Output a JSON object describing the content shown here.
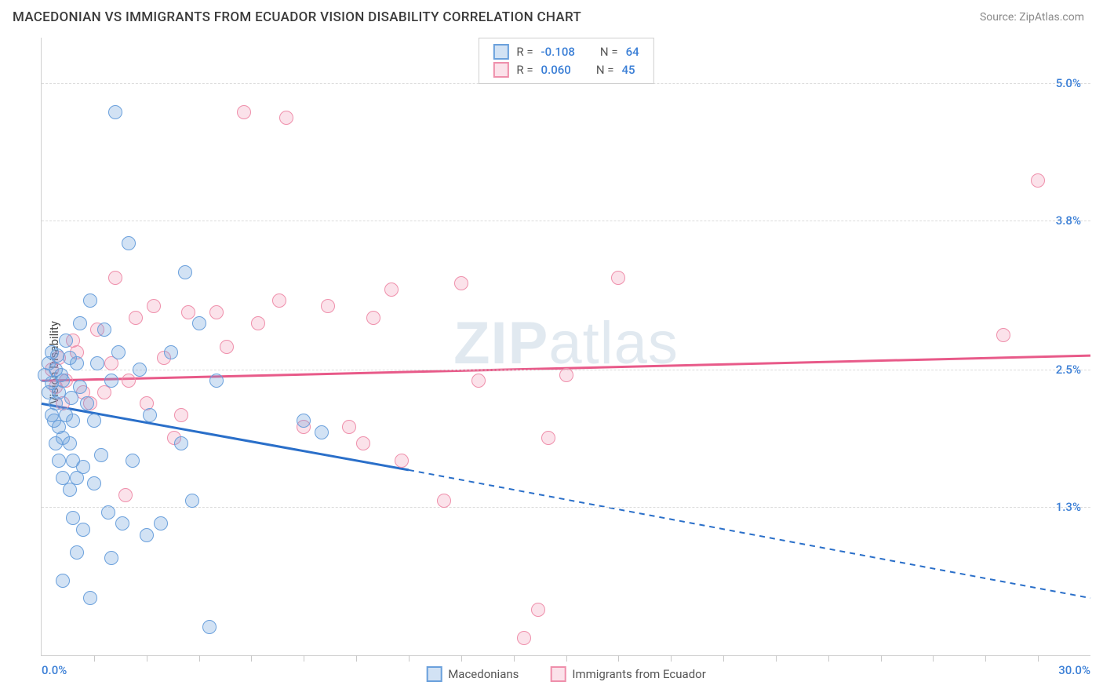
{
  "header": {
    "title": "MACEDONIAN VS IMMIGRANTS FROM ECUADOR VISION DISABILITY CORRELATION CHART",
    "source": "Source: ZipAtlas.com"
  },
  "chart": {
    "type": "scatter",
    "ylabel": "Vision Disability",
    "watermark": {
      "bold": "ZIP",
      "rest": "atlas"
    },
    "xlim": [
      0,
      30
    ],
    "ylim": [
      0,
      5.4
    ],
    "xticks": {
      "min": "0.0%",
      "max": "30.0%",
      "minor_step": 1.5
    },
    "yticks": [
      {
        "v": 1.3,
        "label": "1.3%"
      },
      {
        "v": 2.5,
        "label": "2.5%"
      },
      {
        "v": 3.8,
        "label": "3.8%"
      },
      {
        "v": 5.0,
        "label": "5.0%"
      }
    ],
    "background_color": "#ffffff",
    "grid_color": "#dcdcdc",
    "series": {
      "a": {
        "name": "Macedonians",
        "fill": "rgba(105,160,220,0.30)",
        "stroke": "#6aa0dc",
        "line_color": "#2a6fc9",
        "R": "-0.108",
        "N": "64",
        "trend": {
          "x1": 0,
          "y1": 2.2,
          "x2_solid": 10.5,
          "y2_solid": 1.62,
          "x2": 30,
          "y2": 0.5
        },
        "points": [
          [
            0.1,
            2.45
          ],
          [
            0.2,
            2.3
          ],
          [
            0.2,
            2.55
          ],
          [
            0.3,
            2.1
          ],
          [
            0.3,
            2.38
          ],
          [
            0.3,
            2.65
          ],
          [
            0.35,
            2.05
          ],
          [
            0.4,
            1.85
          ],
          [
            0.4,
            2.2
          ],
          [
            0.4,
            2.5
          ],
          [
            0.45,
            2.62
          ],
          [
            0.5,
            1.7
          ],
          [
            0.5,
            2.0
          ],
          [
            0.5,
            2.3
          ],
          [
            0.55,
            2.45
          ],
          [
            0.6,
            0.65
          ],
          [
            0.6,
            1.55
          ],
          [
            0.6,
            1.9
          ],
          [
            0.6,
            2.4
          ],
          [
            0.7,
            2.1
          ],
          [
            0.7,
            2.75
          ],
          [
            0.8,
            1.45
          ],
          [
            0.8,
            1.85
          ],
          [
            0.8,
            2.6
          ],
          [
            0.85,
            2.25
          ],
          [
            0.9,
            1.2
          ],
          [
            0.9,
            1.7
          ],
          [
            0.9,
            2.05
          ],
          [
            1.0,
            0.9
          ],
          [
            1.0,
            1.55
          ],
          [
            1.0,
            2.55
          ],
          [
            1.1,
            2.35
          ],
          [
            1.1,
            2.9
          ],
          [
            1.2,
            1.1
          ],
          [
            1.2,
            1.65
          ],
          [
            1.3,
            2.2
          ],
          [
            1.4,
            0.5
          ],
          [
            1.4,
            3.1
          ],
          [
            1.5,
            1.5
          ],
          [
            1.5,
            2.05
          ],
          [
            1.6,
            2.55
          ],
          [
            1.7,
            1.75
          ],
          [
            1.8,
            2.85
          ],
          [
            1.9,
            1.25
          ],
          [
            2.0,
            0.85
          ],
          [
            2.0,
            2.4
          ],
          [
            2.1,
            4.75
          ],
          [
            2.3,
            1.15
          ],
          [
            2.5,
            3.6
          ],
          [
            2.6,
            1.7
          ],
          [
            2.8,
            2.5
          ],
          [
            3.0,
            1.05
          ],
          [
            3.1,
            2.1
          ],
          [
            3.4,
            1.15
          ],
          [
            3.7,
            2.65
          ],
          [
            4.0,
            1.85
          ],
          [
            4.1,
            3.35
          ],
          [
            4.3,
            1.35
          ],
          [
            4.5,
            2.9
          ],
          [
            4.8,
            0.25
          ],
          [
            5.0,
            2.4
          ],
          [
            7.5,
            2.05
          ],
          [
            8.0,
            1.95
          ],
          [
            2.2,
            2.65
          ]
        ]
      },
      "b": {
        "name": "Immigrants from Ecuador",
        "fill": "rgba(240,140,170,0.25)",
        "stroke": "#ef8fab",
        "line_color": "#e85a89",
        "R": "0.060",
        "N": "45",
        "trend": {
          "x1": 0,
          "y1": 2.4,
          "x2": 30,
          "y2": 2.62
        },
        "points": [
          [
            0.3,
            2.5
          ],
          [
            0.4,
            2.35
          ],
          [
            0.5,
            2.6
          ],
          [
            0.7,
            2.4
          ],
          [
            0.9,
            2.75
          ],
          [
            1.2,
            2.3
          ],
          [
            1.4,
            2.2
          ],
          [
            1.6,
            2.85
          ],
          [
            1.8,
            2.3
          ],
          [
            2.0,
            2.55
          ],
          [
            2.1,
            3.3
          ],
          [
            2.4,
            1.4
          ],
          [
            2.5,
            2.4
          ],
          [
            2.7,
            2.95
          ],
          [
            3.0,
            2.2
          ],
          [
            3.2,
            3.05
          ],
          [
            3.5,
            2.6
          ],
          [
            3.8,
            1.9
          ],
          [
            4.0,
            2.1
          ],
          [
            4.2,
            3.0
          ],
          [
            5.0,
            3.0
          ],
          [
            5.3,
            2.7
          ],
          [
            5.8,
            4.75
          ],
          [
            6.2,
            2.9
          ],
          [
            6.8,
            3.1
          ],
          [
            7.0,
            4.7
          ],
          [
            7.5,
            2.0
          ],
          [
            8.2,
            3.05
          ],
          [
            8.8,
            2.0
          ],
          [
            9.2,
            1.85
          ],
          [
            9.5,
            2.95
          ],
          [
            10.0,
            3.2
          ],
          [
            10.3,
            1.7
          ],
          [
            11.5,
            1.35
          ],
          [
            12.0,
            3.25
          ],
          [
            12.5,
            2.4
          ],
          [
            13.8,
            0.15
          ],
          [
            14.5,
            1.9
          ],
          [
            15.0,
            2.45
          ],
          [
            14.2,
            0.4
          ],
          [
            16.5,
            3.3
          ],
          [
            27.5,
            2.8
          ],
          [
            28.5,
            4.15
          ],
          [
            0.6,
            2.2
          ],
          [
            1.0,
            2.65
          ]
        ]
      }
    }
  }
}
